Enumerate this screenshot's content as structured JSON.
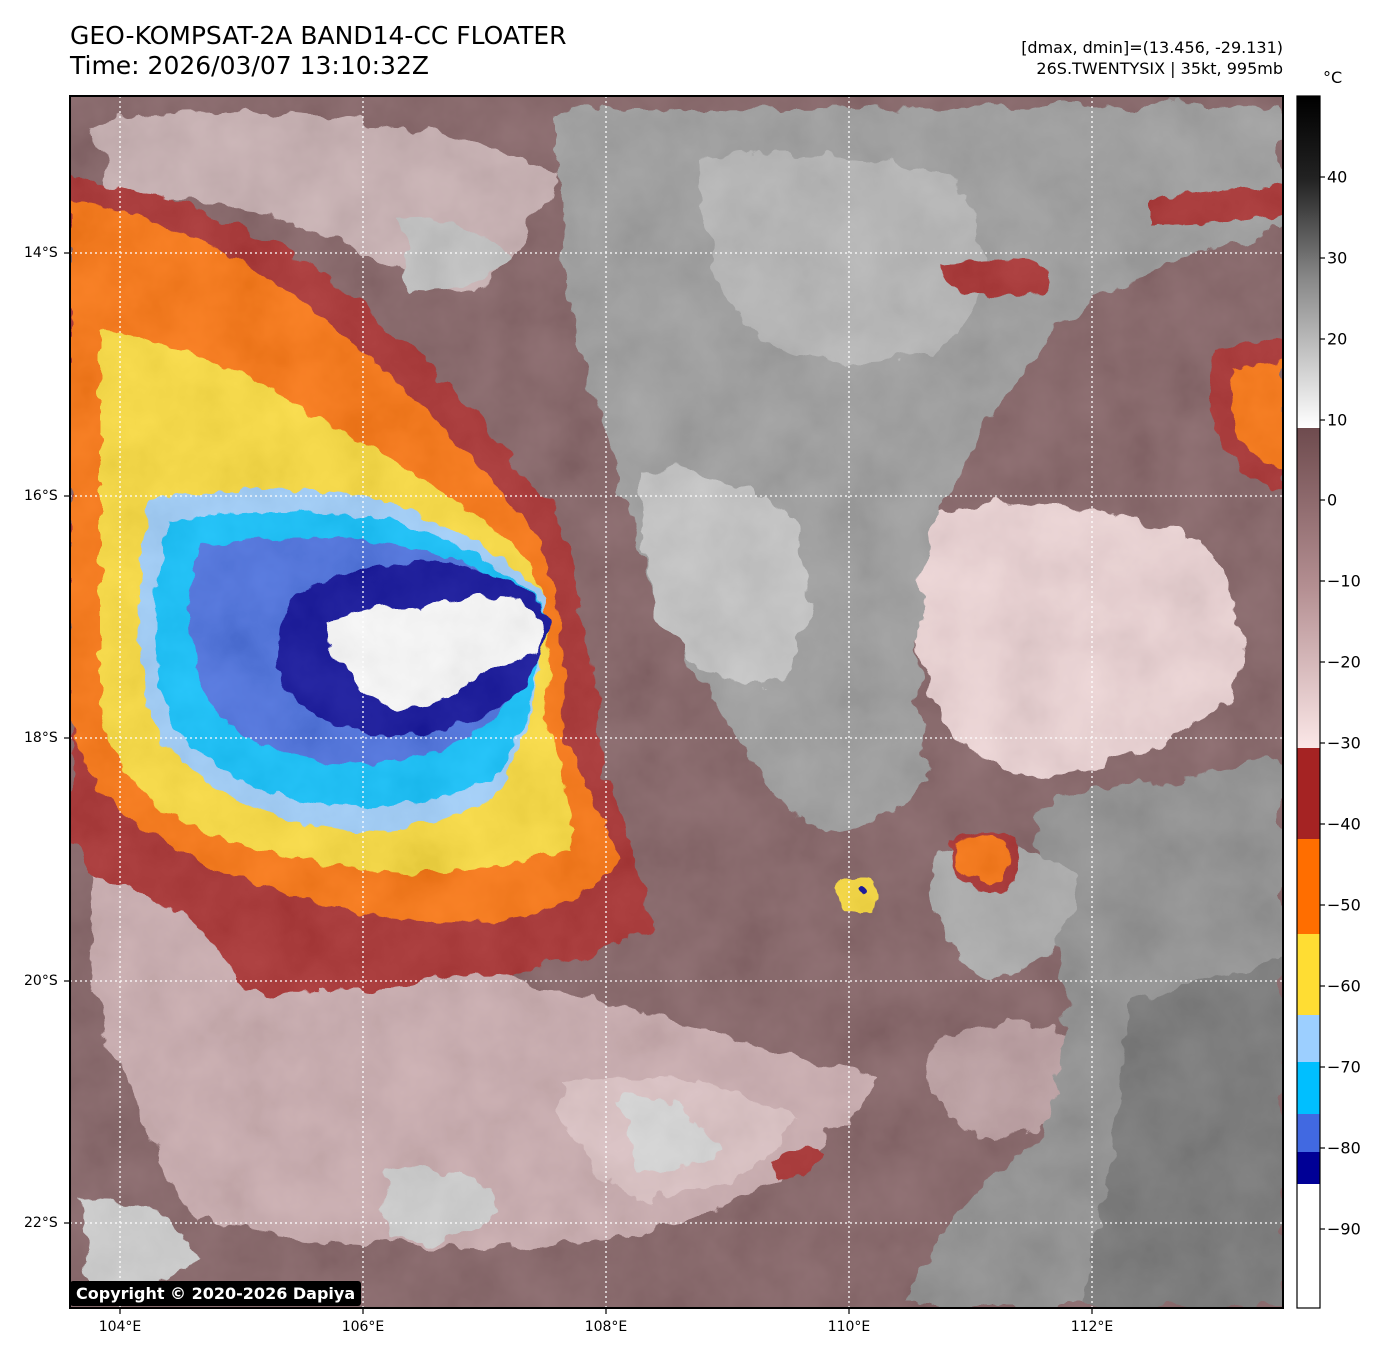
{
  "header": {
    "title": "GEO-KOMPSAT-2A BAND14-CC FLOATER",
    "time": "Time: 2026/03/07 13:10:32Z",
    "range": "[dmax, dmin]=(13.456, -29.131)",
    "storm": "26S.TWENTYSIX | 35kt, 995mb"
  },
  "axes": {
    "lat_labels": [
      "14°S",
      "16°S",
      "18°S",
      "20°S",
      "22°S"
    ],
    "lon_labels": [
      "104°E",
      "106°E",
      "108°E",
      "110°E",
      "112°E"
    ]
  },
  "colorbar": {
    "unit": "°C",
    "ticks": [
      "40",
      "30",
      "20",
      "10",
      "0",
      "−10",
      "−20",
      "−30",
      "−40",
      "−50",
      "−60",
      "−70",
      "−80",
      "−90"
    ],
    "colors": {
      "white_core": "#ffffff",
      "dark_blue": "#000096",
      "royal_blue": "#4169e1",
      "deep_sky": "#00bfff",
      "light_blue": "#9ccfff",
      "yellow": "#ffdd33",
      "orange": "#ff6e00",
      "dark_red": "#a52323",
      "mauve": "#7a5558",
      "pink": "#f2d3d3",
      "gray": "#8a8a8a"
    }
  },
  "copyright": "Copyright © 2020-2026 Dapiya"
}
